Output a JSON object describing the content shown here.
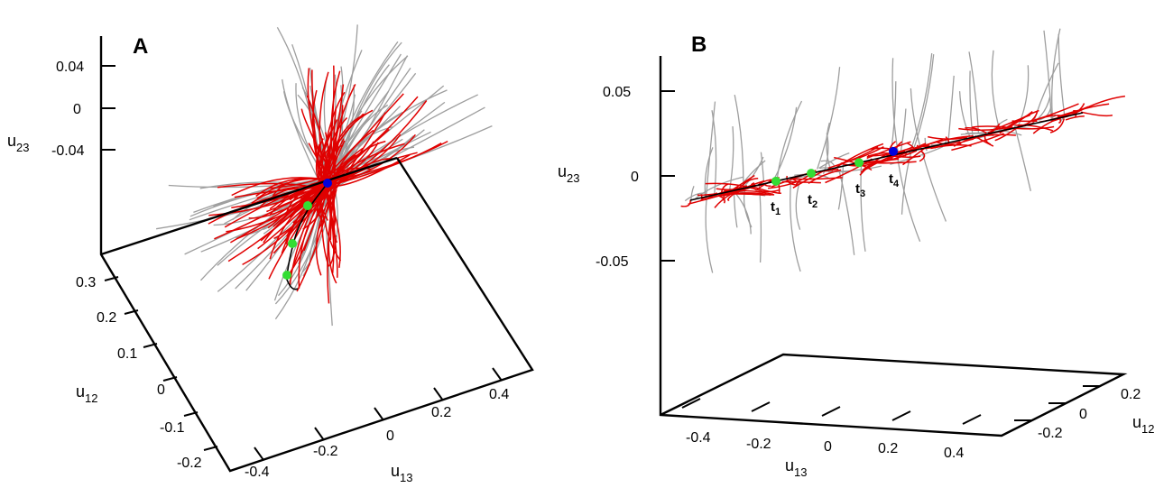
{
  "chart_data": [
    {
      "panel": "A",
      "type": "line",
      "x_axis": {
        "label": "u",
        "sub": "13",
        "ticks": [
          "-0.4",
          "-0.2",
          "0",
          "0.2",
          "0.4"
        ]
      },
      "y_axis": {
        "label": "u",
        "sub": "12",
        "ticks": [
          "-0.2",
          "-0.1",
          "0",
          "0.1",
          "0.2",
          "0.3"
        ]
      },
      "z_axis": {
        "label": "u",
        "sub": "23",
        "ticks": [
          "0.04",
          "0",
          "-0.04"
        ]
      },
      "series": [
        {
          "color": "#9e9e9e",
          "count": 80
        },
        {
          "color": "#e00000",
          "count": 120
        },
        {
          "color": "#000000",
          "count": 1
        }
      ],
      "markers": [
        {
          "color": "#0000dd"
        },
        {
          "color": "#33dd33"
        },
        {
          "color": "#33dd33"
        },
        {
          "color": "#33dd33"
        }
      ]
    },
    {
      "panel": "B",
      "type": "line",
      "x_axis": {
        "label": "u",
        "sub": "13",
        "ticks": [
          "-0.4",
          "-0.2",
          "0",
          "0.2",
          "0.4"
        ]
      },
      "y_axis": {
        "label": "u",
        "sub": "12",
        "ticks": [
          "0.2",
          "0",
          "-0.2"
        ]
      },
      "z_axis": {
        "label": "u",
        "sub": "23",
        "ticks": [
          "0.05",
          "0",
          "-0.05"
        ]
      },
      "series": [
        {
          "color": "#9e9e9e",
          "count": 70
        },
        {
          "color": "#e00000",
          "count": 110
        },
        {
          "color": "#000000",
          "count": 1
        }
      ],
      "markers": [
        {
          "label": "t",
          "sub": "1",
          "color": "#33dd33"
        },
        {
          "label": "t",
          "sub": "2",
          "color": "#33dd33"
        },
        {
          "label": "t",
          "sub": "3",
          "color": "#33dd33"
        },
        {
          "label": "t",
          "sub": "4",
          "color": "#0000dd"
        }
      ]
    }
  ]
}
